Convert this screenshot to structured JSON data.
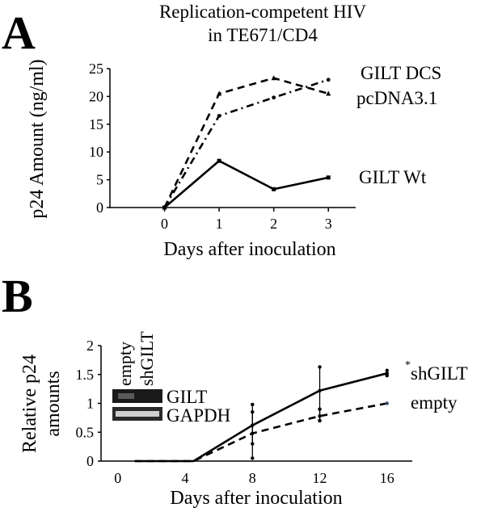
{
  "colors": {
    "ink": "#000000",
    "background": "#ffffff",
    "blot_dark": "#1a1a1a",
    "blot_light": "#cfcfcf"
  },
  "chart_data": [
    {
      "type": "line",
      "panel_letter": "A",
      "title_lines": [
        "Replication-competent HIV",
        "in TE671/CD4"
      ],
      "xlabel": "Days after inoculation",
      "ylabel": "p24 Amount (ng/ml)",
      "x": [
        0,
        1,
        2,
        3
      ],
      "xlim": [
        -1,
        3.5
      ],
      "xticks": [
        "0",
        "1",
        "2",
        "3"
      ],
      "ylim": [
        0,
        25
      ],
      "yticks": [
        "0",
        "5",
        "10",
        "15",
        "20",
        "25"
      ],
      "series": [
        {
          "name": "GILT DCS",
          "values": [
            0,
            20.5,
            23.3,
            20.5
          ],
          "style": "dashed",
          "marker": "triangle"
        },
        {
          "name": "pcDNA3.1",
          "values": [
            0,
            16.5,
            19.8,
            23.0
          ],
          "style": "dashdot",
          "marker": "dot"
        },
        {
          "name": "GILT Wt",
          "values": [
            0,
            8.4,
            3.3,
            5.4
          ],
          "style": "solid",
          "marker": "square"
        }
      ]
    },
    {
      "type": "line",
      "panel_letter": "B",
      "xlabel": "Days after inoculation",
      "ylabel_lines": [
        "Relative p24",
        "amounts"
      ],
      "x": [
        1,
        4.5,
        8,
        12,
        16
      ],
      "xlim": [
        -1,
        17.5
      ],
      "xticks": [
        "0",
        "4",
        "8",
        "12",
        "16"
      ],
      "xtick_values": [
        0,
        4,
        8,
        12,
        16
      ],
      "ylim": [
        0,
        2
      ],
      "yticks": [
        "0",
        "0.5",
        "1",
        "1.5",
        "2"
      ],
      "series": [
        {
          "name": "shGILT",
          "values": [
            0,
            0,
            0.62,
            1.22,
            1.52
          ],
          "errors": [
            null,
            null,
            [
              0.05,
              0.98
            ],
            [
              0.7,
              1.63
            ],
            [
              1.48,
              1.57
            ]
          ],
          "style": "solid",
          "annotation": "*"
        },
        {
          "name": "empty",
          "values": [
            0,
            0,
            0.48,
            0.78,
            1.0
          ],
          "errors": [
            null,
            null,
            [
              0.3,
              0.85
            ],
            [
              0.7,
              0.9
            ],
            null
          ],
          "style": "dashed"
        }
      ],
      "inset": {
        "lane_labels": [
          "empty",
          "shGILT"
        ],
        "band_labels": [
          "GILT",
          "GAPDH"
        ]
      }
    }
  ]
}
